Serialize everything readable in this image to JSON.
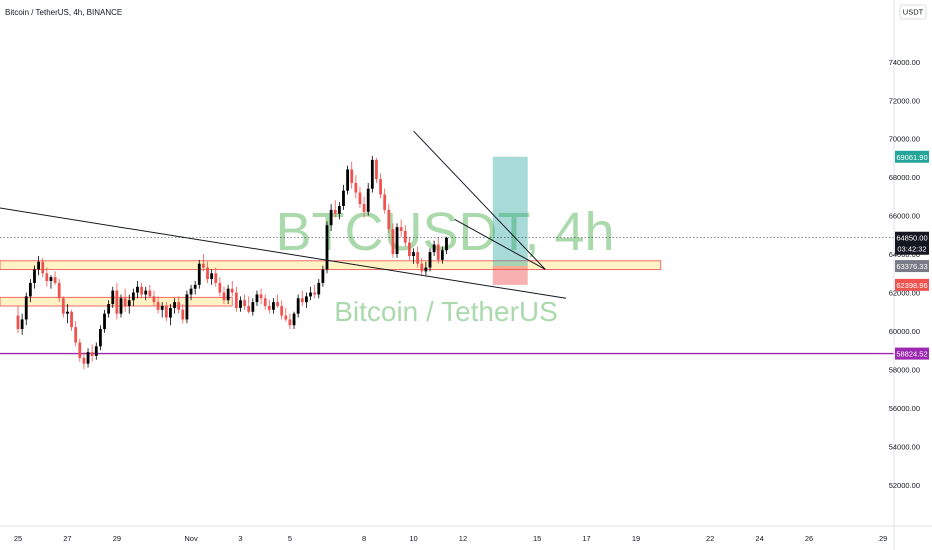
{
  "header": {
    "title": "Bitcoin / TetherUS, 4h, BINANCE"
  },
  "currency": "USDT",
  "watermark": {
    "main": "BTCUSDT, 4h",
    "sub": "Bitcoin / TetherUS"
  },
  "colors": {
    "up": "#26a69a",
    "down": "#ef5350",
    "candle_up": "#000000",
    "candle_down": "#ef5350",
    "zone_fill": "#fff3c4",
    "zone_border": "#ef5350",
    "support": "#9c27b0",
    "long_target": "#26a69a",
    "long_stop": "#ef5350"
  },
  "chart_data": {
    "type": "candlestick",
    "x": {
      "ticks": [
        {
          "label": "25",
          "i": 0
        },
        {
          "label": "27",
          "i": 12
        },
        {
          "label": "29",
          "i": 24
        },
        {
          "label": "Nov",
          "i": 42
        },
        {
          "label": "3",
          "i": 54
        },
        {
          "label": "5",
          "i": 66
        },
        {
          "label": "8",
          "i": 84
        },
        {
          "label": "10",
          "i": 96
        },
        {
          "label": "12",
          "i": 108
        },
        {
          "label": "15",
          "i": 126
        },
        {
          "label": "17",
          "i": 138
        },
        {
          "label": "19",
          "i": 150
        },
        {
          "label": "22",
          "i": 168
        },
        {
          "label": "24",
          "i": 180
        },
        {
          "label": "26",
          "i": 192
        },
        {
          "label": "29",
          "i": 210
        }
      ]
    },
    "y": {
      "min": 51000,
      "max": 75500,
      "ticks": [
        "52000.00",
        "54000.00",
        "56000.00",
        "58000.00",
        "60000.00",
        "62000.00",
        "64000.00",
        "66000.00",
        "68000.00",
        "70000.00",
        "72000.00",
        "74000.00"
      ]
    },
    "price_labels": [
      {
        "value": 69061.9,
        "text": "69061.90",
        "color": "#26a69a"
      },
      {
        "value": 64850.0,
        "text": "64850.00",
        "color": "#131722"
      },
      {
        "value": 64850.0,
        "text": "03:42:32",
        "color": "#131722",
        "offset": 1
      },
      {
        "value": 63376.33,
        "text": "63376.33",
        "color": "#787b86"
      },
      {
        "value": 62398.96,
        "text": "62398.96",
        "color": "#ef5350"
      },
      {
        "value": 58824.52,
        "text": "58824.52",
        "color": "#9c27b0"
      }
    ],
    "current_price": 64850.0,
    "support_line": 58824.52,
    "zones": [
      {
        "from": 63200,
        "to": 63650,
        "i_end": 156
      },
      {
        "from": 61300,
        "to": 61750,
        "i_end": 52
      }
    ],
    "trendlines": [
      {
        "x1": -6,
        "y1": 66450,
        "x2": 133,
        "y2": 61700
      },
      {
        "x1": 96,
        "y1": 70400,
        "x2": 128,
        "y2": 63200
      },
      {
        "x1": 106,
        "y1": 65800,
        "x2": 128,
        "y2": 63200
      }
    ],
    "position": {
      "i1": 115,
      "i2": 123,
      "entry": 63376.33,
      "target": 69061.9,
      "stop": 62398.96
    },
    "candles": [
      [
        60800,
        61300,
        59900,
        60100
      ],
      [
        60100,
        60900,
        59800,
        60600
      ],
      [
        60600,
        62000,
        60300,
        61800
      ],
      [
        61800,
        62700,
        61500,
        62500
      ],
      [
        62500,
        63400,
        62200,
        63200
      ],
      [
        63200,
        63900,
        62900,
        63600
      ],
      [
        63600,
        63800,
        62800,
        63000
      ],
      [
        63000,
        63300,
        62300,
        62600
      ],
      [
        62600,
        62900,
        62200,
        62800
      ],
      [
        62800,
        63100,
        62400,
        62500
      ],
      [
        62500,
        62700,
        61500,
        61700
      ],
      [
        61700,
        61800,
        60700,
        60900
      ],
      [
        60900,
        61400,
        60400,
        61000
      ],
      [
        61000,
        61100,
        60000,
        60200
      ],
      [
        60200,
        60500,
        59200,
        59400
      ],
      [
        59400,
        59600,
        58400,
        58600
      ],
      [
        58600,
        58900,
        58000,
        58300
      ],
      [
        58300,
        59100,
        58100,
        58900
      ],
      [
        58900,
        59300,
        58400,
        58700
      ],
      [
        58700,
        59400,
        58500,
        59200
      ],
      [
        59200,
        60300,
        59000,
        60100
      ],
      [
        60100,
        61100,
        59900,
        60900
      ],
      [
        60900,
        61600,
        60700,
        61400
      ],
      [
        61400,
        62300,
        61200,
        62100
      ],
      [
        62100,
        62500,
        60600,
        60900
      ],
      [
        60900,
        61900,
        60700,
        61700
      ],
      [
        61700,
        62200,
        61000,
        61300
      ],
      [
        61300,
        61900,
        60900,
        61600
      ],
      [
        61600,
        62200,
        61300,
        62000
      ],
      [
        62000,
        62600,
        61700,
        62300
      ],
      [
        62300,
        62500,
        61700,
        61900
      ],
      [
        61900,
        62300,
        61600,
        62100
      ],
      [
        62100,
        62400,
        61700,
        61800
      ],
      [
        61800,
        62100,
        61300,
        61500
      ],
      [
        61500,
        61800,
        60900,
        61100
      ],
      [
        61100,
        61500,
        60700,
        61300
      ],
      [
        61300,
        61500,
        60500,
        60700
      ],
      [
        60700,
        61400,
        60300,
        61200
      ],
      [
        61200,
        61700,
        60900,
        61500
      ],
      [
        61500,
        61800,
        60900,
        61100
      ],
      [
        61100,
        61400,
        60400,
        60600
      ],
      [
        60600,
        62100,
        60400,
        61900
      ],
      [
        61900,
        62400,
        61600,
        62200
      ],
      [
        62200,
        62600,
        61900,
        62400
      ],
      [
        62400,
        63700,
        62200,
        63500
      ],
      [
        63500,
        64000,
        63100,
        63300
      ],
      [
        63300,
        63600,
        62500,
        62700
      ],
      [
        62700,
        63200,
        62400,
        63000
      ],
      [
        63000,
        63300,
        62300,
        62500
      ],
      [
        62500,
        62800,
        61800,
        62000
      ],
      [
        62000,
        62300,
        61400,
        61600
      ],
      [
        61600,
        62400,
        61400,
        62200
      ],
      [
        62200,
        62600,
        61800,
        62000
      ],
      [
        62000,
        62300,
        61000,
        61200
      ],
      [
        61200,
        61800,
        61000,
        61600
      ],
      [
        61600,
        61900,
        61100,
        61300
      ],
      [
        61300,
        61800,
        60900,
        61000
      ],
      [
        61000,
        61700,
        60800,
        61500
      ],
      [
        61500,
        62100,
        61300,
        61900
      ],
      [
        61900,
        62200,
        61400,
        61700
      ],
      [
        61700,
        61900,
        61100,
        61300
      ],
      [
        61300,
        61600,
        60900,
        61100
      ],
      [
        61100,
        61700,
        60900,
        61500
      ],
      [
        61500,
        61900,
        61200,
        61300
      ],
      [
        61300,
        61600,
        60600,
        60800
      ],
      [
        60800,
        61200,
        60500,
        60600
      ],
      [
        60600,
        60900,
        60100,
        60300
      ],
      [
        60300,
        61000,
        60100,
        60900
      ],
      [
        60900,
        61900,
        60700,
        61700
      ],
      [
        61700,
        62100,
        61300,
        61500
      ],
      [
        61500,
        62000,
        61200,
        61800
      ],
      [
        61800,
        62300,
        61600,
        62000
      ],
      [
        62000,
        62400,
        61700,
        61900
      ],
      [
        61900,
        62700,
        61700,
        62500
      ],
      [
        62500,
        63400,
        62300,
        63200
      ],
      [
        63200,
        65700,
        63000,
        65500
      ],
      [
        65500,
        66600,
        65200,
        66300
      ],
      [
        66300,
        66800,
        65900,
        66100
      ],
      [
        66100,
        66700,
        65800,
        66500
      ],
      [
        66500,
        67600,
        66300,
        67300
      ],
      [
        67300,
        68600,
        67100,
        68400
      ],
      [
        68400,
        68800,
        67400,
        67700
      ],
      [
        67700,
        68100,
        66900,
        67200
      ],
      [
        67200,
        67500,
        66400,
        66600
      ],
      [
        66600,
        67000,
        65900,
        66200
      ],
      [
        66200,
        67700,
        66000,
        67400
      ],
      [
        67400,
        69100,
        67200,
        68900
      ],
      [
        68900,
        69000,
        67700,
        67900
      ],
      [
        67900,
        68200,
        66900,
        67100
      ],
      [
        67100,
        67400,
        66100,
        66300
      ],
      [
        66300,
        66600,
        65100,
        65300
      ],
      [
        65300,
        65600,
        63800,
        64000
      ],
      [
        64000,
        65600,
        63800,
        65400
      ],
      [
        65400,
        65800,
        64900,
        65200
      ],
      [
        65200,
        65500,
        64400,
        64600
      ],
      [
        64600,
        64900,
        63700,
        63900
      ],
      [
        63900,
        64300,
        63500,
        64100
      ],
      [
        64100,
        64400,
        63300,
        63500
      ],
      [
        63500,
        63800,
        62900,
        63100
      ],
      [
        63100,
        63600,
        62900,
        63300
      ],
      [
        63300,
        64300,
        63100,
        64100
      ],
      [
        64100,
        64700,
        63900,
        64500
      ],
      [
        64500,
        64900,
        63500,
        63700
      ],
      [
        63700,
        64400,
        63500,
        64200
      ],
      [
        64200,
        64900,
        64000,
        64850
      ]
    ]
  }
}
